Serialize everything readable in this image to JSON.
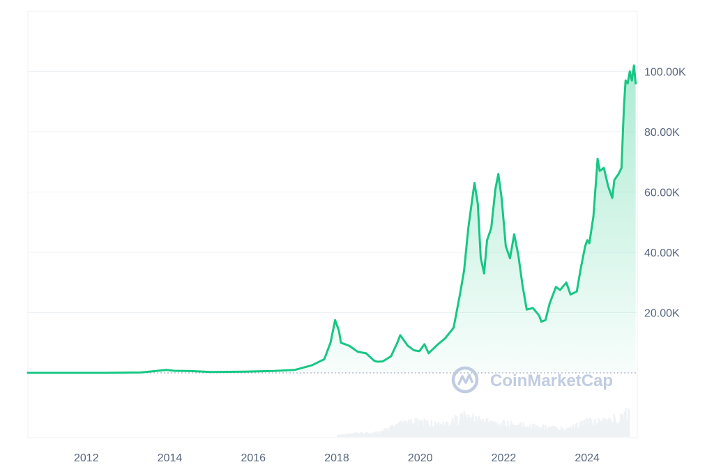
{
  "chart_data": {
    "type": "area",
    "title": "",
    "xlabel": "",
    "ylabel": "",
    "xlim": [
      2010.6,
      2025.2
    ],
    "ylim": [
      0,
      120000
    ],
    "grid": true,
    "legend": "none",
    "colors": {
      "line": "#16c784",
      "fill": "#16c784",
      "grid": "#eff2f5",
      "text": "#58667e",
      "baseline": "#a6b0c3",
      "watermark": "#b7c4dc",
      "volume": "#eff2f5"
    },
    "x_ticks": [
      {
        "value": 2012,
        "label": "2012"
      },
      {
        "value": 2014,
        "label": "2014"
      },
      {
        "value": 2016,
        "label": "2016"
      },
      {
        "value": 2018,
        "label": "2018"
      },
      {
        "value": 2020,
        "label": "2020"
      },
      {
        "value": 2022,
        "label": "2022"
      },
      {
        "value": 2024,
        "label": "2024"
      }
    ],
    "y_ticks": [
      {
        "value": 20000,
        "label": "20.00K"
      },
      {
        "value": 40000,
        "label": "40.00K"
      },
      {
        "value": 60000,
        "label": "60.00K"
      },
      {
        "value": 80000,
        "label": "80.00K"
      },
      {
        "value": 100000,
        "label": "100.00K"
      }
    ],
    "series": [
      {
        "x": [
          2010.6,
          2011.5,
          2012.5,
          2013.3,
          2013.8,
          2013.92,
          2014.1,
          2014.5,
          2015.0,
          2015.8,
          2016.5,
          2017.0,
          2017.4,
          2017.7,
          2017.85,
          2017.96,
          2018.05,
          2018.1,
          2018.3,
          2018.5,
          2018.7,
          2018.9,
          2018.97,
          2019.1,
          2019.3,
          2019.45,
          2019.52,
          2019.7,
          2019.85,
          2019.98,
          2020.1,
          2020.2,
          2020.4,
          2020.6,
          2020.8,
          2020.95,
          2021.05,
          2021.15,
          2021.25,
          2021.3,
          2021.38,
          2021.45,
          2021.53,
          2021.6,
          2021.7,
          2021.8,
          2021.87,
          2021.95,
          2022.05,
          2022.15,
          2022.25,
          2022.35,
          2022.45,
          2022.55,
          2022.7,
          2022.85,
          2022.9,
          2023.0,
          2023.1,
          2023.25,
          2023.35,
          2023.5,
          2023.6,
          2023.75,
          2023.85,
          2023.95,
          2024.0,
          2024.05,
          2024.15,
          2024.25,
          2024.3,
          2024.4,
          2024.5,
          2024.6,
          2024.65,
          2024.75,
          2024.82,
          2024.88,
          2024.92,
          2024.97,
          2025.02,
          2025.07,
          2025.12,
          2025.16
        ],
        "y": [
          0,
          5,
          10,
          120,
          800,
          1000,
          700,
          600,
          280,
          400,
          650,
          1000,
          2500,
          4500,
          10000,
          17500,
          14000,
          10000,
          9000,
          7000,
          6500,
          4000,
          3700,
          3800,
          5500,
          10000,
          12500,
          9000,
          7500,
          7200,
          9500,
          6500,
          9200,
          11500,
          15000,
          26000,
          34000,
          48000,
          58000,
          63000,
          56000,
          38000,
          33000,
          44000,
          48000,
          61000,
          66000,
          58000,
          42000,
          38000,
          46000,
          39000,
          29000,
          21000,
          21500,
          19000,
          17000,
          17500,
          23000,
          28500,
          27500,
          30000,
          26000,
          27000,
          35000,
          42000,
          44000,
          43000,
          52000,
          71000,
          67000,
          68000,
          62000,
          58000,
          64000,
          66000,
          68000,
          88000,
          97000,
          96000,
          100000,
          97000,
          102000,
          96000
        ]
      }
    ],
    "volume": {
      "x": [
        2018.0,
        2018.5,
        2019.0,
        2019.5,
        2020.0,
        2020.5,
        2021.0,
        2021.5,
        2022.0,
        2022.5,
        2023.0,
        2023.5,
        2024.0,
        2024.5,
        2025.0
      ],
      "y": [
        4,
        7,
        9,
        24,
        28,
        22,
        38,
        30,
        24,
        22,
        18,
        16,
        28,
        30,
        46
      ]
    }
  },
  "watermark": {
    "logo": "coinmarketcap-logo",
    "text": "CoinMarketCap"
  }
}
